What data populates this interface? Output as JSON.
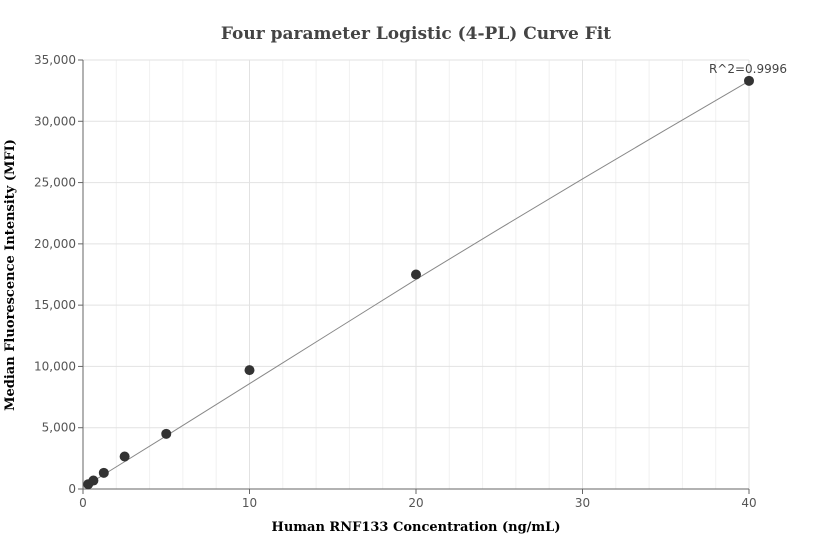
{
  "chart_data": {
    "type": "scatter",
    "title": "Four parameter Logistic (4-PL) Curve Fit",
    "xlabel": "Human RNF133 Concentration (ng/mL)",
    "ylabel": "Median Fluorescence Intensity (MFI)",
    "xlim": [
      0,
      40
    ],
    "ylim": [
      0,
      35000
    ],
    "x_ticks": [
      0,
      10,
      20,
      30,
      40
    ],
    "x_tick_labels": [
      "0",
      "10",
      "20",
      "30",
      "40"
    ],
    "y_ticks": [
      0,
      5000,
      10000,
      15000,
      20000,
      25000,
      30000,
      35000
    ],
    "y_tick_labels": [
      "0",
      "5,000",
      "10,000",
      "15,000",
      "20,000",
      "25,000",
      "30,000",
      "35,000"
    ],
    "grid": true,
    "series": [
      {
        "type": "scatter",
        "color": "#333333",
        "x": [
          0.3125,
          0.625,
          1.25,
          2.5,
          5,
          10,
          20,
          40
        ],
        "y": [
          390,
          690,
          1320,
          2650,
          4500,
          9700,
          17500,
          33300
        ]
      },
      {
        "type": "line",
        "color": "#888888",
        "x": [
          0,
          5,
          10,
          15,
          20,
          25,
          30,
          35,
          40
        ],
        "y": [
          120,
          4340,
          8590,
          12850,
          17100,
          21230,
          25300,
          29310,
          33280
        ]
      }
    ],
    "annotation": "R^2=0.9996"
  }
}
